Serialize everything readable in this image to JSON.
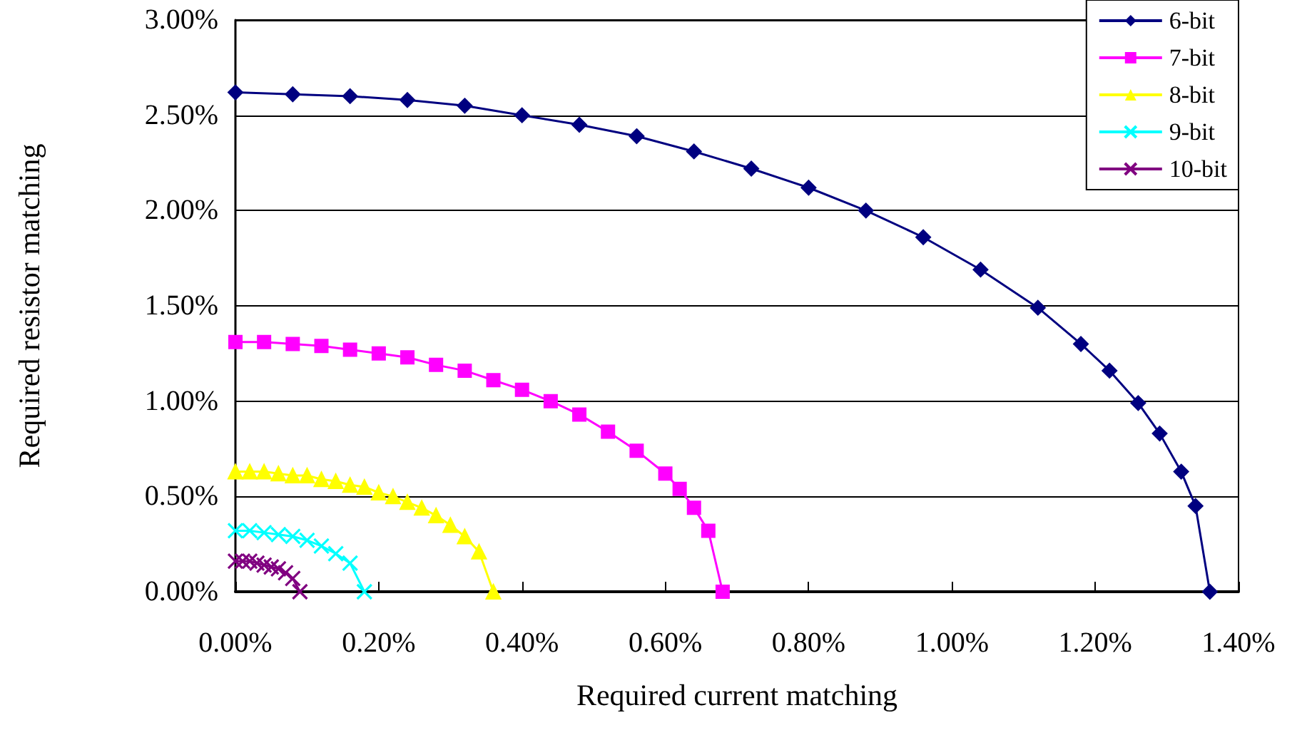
{
  "chart_data": {
    "type": "line",
    "xlabel": "Required current matching",
    "ylabel": "Required resistor matching",
    "series": [
      {
        "name": "6-bit",
        "color": "#000080",
        "marker": "diamond",
        "x": [
          0,
          0.08,
          0.16,
          0.24,
          0.32,
          0.4,
          0.48,
          0.56,
          0.64,
          0.72,
          0.8,
          0.88,
          0.96,
          1.04,
          1.12,
          1.18,
          1.22,
          1.26,
          1.29,
          1.32,
          1.34,
          1.36
        ],
        "values": [
          2.62,
          2.61,
          2.6,
          2.58,
          2.55,
          2.5,
          2.45,
          2.39,
          2.31,
          2.22,
          2.12,
          2.0,
          1.86,
          1.69,
          1.49,
          1.3,
          1.16,
          0.99,
          0.83,
          0.63,
          0.45,
          0
        ]
      },
      {
        "name": "7-bit",
        "color": "#ff00ff",
        "marker": "square",
        "x": [
          0,
          0.04,
          0.08,
          0.12,
          0.16,
          0.2,
          0.24,
          0.28,
          0.32,
          0.36,
          0.4,
          0.44,
          0.48,
          0.52,
          0.56,
          0.6,
          0.62,
          0.64,
          0.66,
          0.68
        ],
        "values": [
          1.31,
          1.31,
          1.3,
          1.29,
          1.27,
          1.25,
          1.23,
          1.19,
          1.16,
          1.11,
          1.06,
          1.0,
          0.93,
          0.84,
          0.74,
          0.62,
          0.54,
          0.44,
          0.32,
          0
        ]
      },
      {
        "name": "8-bit",
        "color": "#ffff00",
        "marker": "triangle",
        "x": [
          0,
          0.02,
          0.04,
          0.06,
          0.08,
          0.1,
          0.12,
          0.14,
          0.16,
          0.18,
          0.2,
          0.22,
          0.24,
          0.26,
          0.28,
          0.3,
          0.32,
          0.34,
          0.36
        ],
        "values": [
          0.63,
          0.63,
          0.63,
          0.62,
          0.61,
          0.61,
          0.59,
          0.58,
          0.56,
          0.55,
          0.52,
          0.5,
          0.47,
          0.44,
          0.4,
          0.35,
          0.29,
          0.21,
          0
        ]
      },
      {
        "name": "9-bit",
        "color": "#00ffff",
        "marker": "cross",
        "x": [
          0,
          0.02,
          0.04,
          0.06,
          0.08,
          0.1,
          0.12,
          0.14,
          0.16,
          0.18
        ],
        "values": [
          0.32,
          0.32,
          0.31,
          0.3,
          0.29,
          0.27,
          0.24,
          0.2,
          0.15,
          0
        ]
      },
      {
        "name": "10-bit",
        "color": "#800080",
        "marker": "cross",
        "x": [
          0,
          0.01,
          0.02,
          0.03,
          0.04,
          0.05,
          0.06,
          0.07,
          0.08,
          0.09
        ],
        "values": [
          0.16,
          0.16,
          0.16,
          0.15,
          0.14,
          0.13,
          0.12,
          0.1,
          0.07,
          0
        ]
      }
    ],
    "xlim": [
      0,
      1.4
    ],
    "xticks": [
      {
        "value": 0,
        "label": "0.00%"
      },
      {
        "value": 0.2,
        "label": "0.20%"
      },
      {
        "value": 0.4,
        "label": "0.40%"
      },
      {
        "value": 0.6,
        "label": "0.60%"
      },
      {
        "value": 0.8,
        "label": "0.80%"
      },
      {
        "value": 1.0,
        "label": "1.00%"
      },
      {
        "value": 1.2,
        "label": "1.20%"
      },
      {
        "value": 1.4,
        "label": "1.40%"
      }
    ],
    "ylim": [
      0,
      3
    ],
    "yticks": [
      {
        "value": 0,
        "label": "0.00%"
      },
      {
        "value": 0.5,
        "label": "0.50%"
      },
      {
        "value": 1.0,
        "label": "1.00%"
      },
      {
        "value": 1.5,
        "label": "1.50%"
      },
      {
        "value": 2.0,
        "label": "2.00%"
      },
      {
        "value": 2.5,
        "label": "2.50%"
      },
      {
        "value": 3.0,
        "label": "3.00%"
      }
    ],
    "grid": "y",
    "legend": "top right",
    "line_style": "solid"
  }
}
